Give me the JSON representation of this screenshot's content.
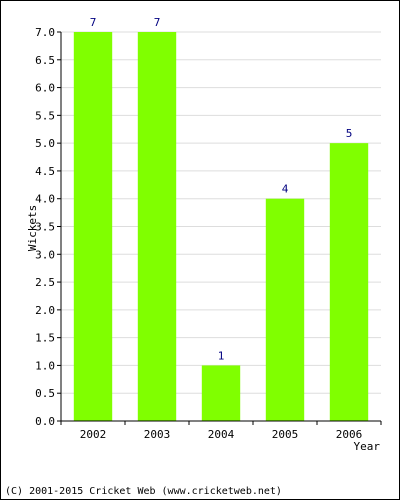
{
  "chart_data": {
    "type": "bar",
    "categories": [
      "2002",
      "2003",
      "2004",
      "2005",
      "2006"
    ],
    "values": [
      7,
      7,
      1,
      4,
      5
    ],
    "data_labels": [
      "7",
      "7",
      "1",
      "4",
      "5"
    ],
    "xlabel": "Year",
    "ylabel": "Wickets",
    "ylim": [
      0,
      7
    ],
    "ytick_step": 0.5,
    "yticks": [
      "0.0",
      "0.5",
      "1.0",
      "1.5",
      "2.0",
      "2.5",
      "3.0",
      "3.5",
      "4.0",
      "4.5",
      "5.0",
      "5.5",
      "6.0",
      "6.5",
      "7.0"
    ],
    "grid": true,
    "bar_color": "#80ff00",
    "label_color": "#000080",
    "grid_color": "#dddddd"
  },
  "footer": {
    "copyright": "(C) 2001-2015 Cricket Web (www.cricketweb.net)"
  }
}
